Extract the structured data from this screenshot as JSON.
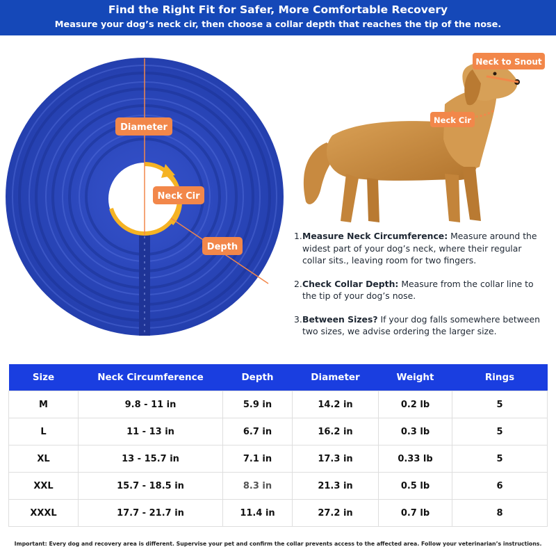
{
  "header": {
    "title": "Find the Right Fit for Safer, More Comfortable Recovery",
    "subtitle": "Measure your dog’s neck cir, then choose a collar depth that reaches the tip of the nose."
  },
  "collar_labels": {
    "diameter": "Diameter",
    "neck_cir": "Neck Cir",
    "depth": "Depth"
  },
  "dog_labels": {
    "neck_to_snout": "Neck to Snout",
    "neck_cir": "Neck Cir"
  },
  "steps": [
    {
      "num": "1.",
      "bold": "Measure Neck Circumference:",
      "text": " Measure around the widest part of your dog’s neck, where their regular collar sits., leaving room for two fingers."
    },
    {
      "num": "2.",
      "bold": "Check Collar Depth:",
      "text": " Measure from the collar line to the tip of your dog’s nose."
    },
    {
      "num": "3.",
      "bold": "Between Sizes?",
      "text": " If your dog falls somewhere between  two sizes, we advise ordering the larger size."
    }
  ],
  "table": {
    "headers": [
      "Size",
      "Neck Circumference",
      "Depth",
      "Diameter",
      "Weight",
      "Rings"
    ],
    "rows": [
      [
        "M",
        "9.8 - 11 in",
        "5.9 in",
        "14.2 in",
        "0.2 lb",
        "5"
      ],
      [
        "L",
        "11 - 13 in",
        "6.7 in",
        "16.2 in",
        "0.3 lb",
        "5"
      ],
      [
        "XL",
        "13 - 15.7 in",
        "7.1 in",
        "17.3 in",
        "0.33 lb",
        "5"
      ],
      [
        "XXL",
        "15.7 - 18.5 in",
        "8.3 in",
        "21.3 in",
        "0.5 lb",
        "6"
      ],
      [
        "XXXL",
        "17.7 - 21.7 in",
        "11.4 in",
        "27.2 in",
        "0.7 lb",
        "8"
      ]
    ]
  },
  "footnote": "Important: Every dog and recovery area is different. Supervise your pet and confirm the collar prevents access to the affected area. Follow your veterinarian’s instructions.",
  "colors": {
    "header_blue": "#1548b8",
    "table_header_blue": "#1a3ee0",
    "collar_blue": "#2b45b8",
    "label_orange": "#f2874a",
    "neck_ring_yellow": "#f5b324",
    "dog_gold": "#c98a3c"
  }
}
